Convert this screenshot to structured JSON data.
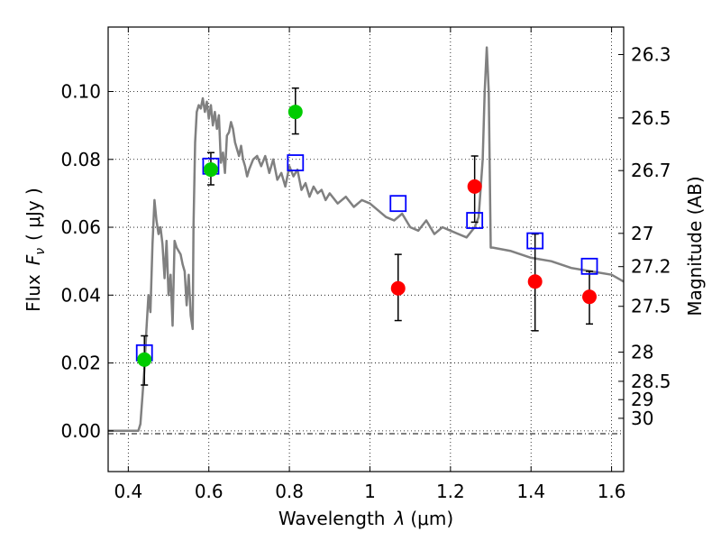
{
  "chart_data": {
    "type": "scatter",
    "xlabel_text": "Wavelength",
    "xlabel_symbol": "λ",
    "xlabel_unit": "(μm)",
    "ylabel_text": "Flux",
    "ylabel_symbol": "F",
    "ylabel_subscript": "ν",
    "ylabel_unit": "( μJy )",
    "y2label": "Magnitude (AB)",
    "xlim": [
      0.35,
      1.63
    ],
    "ylim": [
      -0.012,
      0.119
    ],
    "grid": true,
    "x_ticks": [
      {
        "value": 0.4,
        "label": "0.4"
      },
      {
        "value": 0.6,
        "label": "0.6"
      },
      {
        "value": 0.8,
        "label": "0.8"
      },
      {
        "value": 1.0,
        "label": "1"
      },
      {
        "value": 1.2,
        "label": "1.2"
      },
      {
        "value": 1.4,
        "label": "1.4"
      },
      {
        "value": 1.6,
        "label": "1.6"
      }
    ],
    "y_ticks": [
      {
        "value": 0.0,
        "label": "0.00"
      },
      {
        "value": 0.02,
        "label": "0.02"
      },
      {
        "value": 0.04,
        "label": "0.04"
      },
      {
        "value": 0.06,
        "label": "0.06"
      },
      {
        "value": 0.08,
        "label": "0.08"
      },
      {
        "value": 0.1,
        "label": "0.10"
      }
    ],
    "y2_ticks": [
      {
        "label": "26.3",
        "flux": 0.1109
      },
      {
        "label": "26.5",
        "flux": 0.0922
      },
      {
        "label": "26.7",
        "flux": 0.0767
      },
      {
        "label": "27",
        "flux": 0.0582
      },
      {
        "label": "27.2",
        "flux": 0.0484
      },
      {
        "label": "27.5",
        "flux": 0.0367
      },
      {
        "label": "28",
        "flux": 0.0232
      },
      {
        "label": "28.5",
        "flux": 0.0146
      },
      {
        "label": "29",
        "flux": 0.0092
      },
      {
        "label": "30",
        "flux": 0.0037
      }
    ],
    "model_spectrum": {
      "color": "#808080",
      "x": [
        0.35,
        0.42,
        0.425,
        0.43,
        0.435,
        0.44,
        0.445,
        0.45,
        0.455,
        0.46,
        0.465,
        0.47,
        0.475,
        0.48,
        0.485,
        0.49,
        0.495,
        0.5,
        0.505,
        0.51,
        0.515,
        0.52,
        0.525,
        0.53,
        0.535,
        0.54,
        0.545,
        0.55,
        0.555,
        0.56,
        0.562,
        0.566,
        0.57,
        0.575,
        0.58,
        0.585,
        0.59,
        0.595,
        0.6,
        0.605,
        0.61,
        0.615,
        0.62,
        0.625,
        0.63,
        0.635,
        0.64,
        0.645,
        0.65,
        0.655,
        0.66,
        0.665,
        0.67,
        0.675,
        0.68,
        0.685,
        0.69,
        0.695,
        0.7,
        0.71,
        0.72,
        0.73,
        0.74,
        0.75,
        0.76,
        0.77,
        0.78,
        0.79,
        0.8,
        0.81,
        0.82,
        0.83,
        0.84,
        0.85,
        0.86,
        0.87,
        0.88,
        0.89,
        0.9,
        0.92,
        0.94,
        0.96,
        0.98,
        1.0,
        1.02,
        1.04,
        1.06,
        1.08,
        1.1,
        1.12,
        1.14,
        1.16,
        1.18,
        1.2,
        1.22,
        1.24,
        1.26,
        1.27,
        1.28,
        1.285,
        1.29,
        1.295,
        1.3,
        1.305,
        1.35,
        1.4,
        1.45,
        1.5,
        1.55,
        1.6,
        1.63
      ],
      "y": [
        0.0,
        0.0,
        0.0,
        0.002,
        0.01,
        0.018,
        0.03,
        0.04,
        0.035,
        0.055,
        0.068,
        0.062,
        0.058,
        0.06,
        0.055,
        0.045,
        0.056,
        0.04,
        0.046,
        0.031,
        0.056,
        0.054,
        0.053,
        0.052,
        0.049,
        0.047,
        0.037,
        0.046,
        0.034,
        0.03,
        0.06,
        0.085,
        0.094,
        0.096,
        0.095,
        0.098,
        0.094,
        0.097,
        0.092,
        0.096,
        0.09,
        0.094,
        0.089,
        0.093,
        0.079,
        0.082,
        0.076,
        0.087,
        0.088,
        0.091,
        0.089,
        0.085,
        0.083,
        0.081,
        0.084,
        0.08,
        0.078,
        0.075,
        0.077,
        0.08,
        0.081,
        0.078,
        0.081,
        0.076,
        0.08,
        0.074,
        0.076,
        0.072,
        0.078,
        0.075,
        0.077,
        0.071,
        0.073,
        0.069,
        0.072,
        0.07,
        0.071,
        0.068,
        0.07,
        0.067,
        0.069,
        0.066,
        0.068,
        0.067,
        0.065,
        0.063,
        0.062,
        0.064,
        0.06,
        0.059,
        0.062,
        0.058,
        0.06,
        0.059,
        0.058,
        0.057,
        0.06,
        0.063,
        0.08,
        0.1,
        0.113,
        0.1,
        0.054,
        0.054,
        0.053,
        0.051,
        0.05,
        0.048,
        0.047,
        0.046,
        0.044
      ]
    },
    "series": [
      {
        "marker": "open-square",
        "color": "#0000ff",
        "points": [
          {
            "x": 0.44,
            "y": 0.023
          },
          {
            "x": 0.605,
            "y": 0.078
          },
          {
            "x": 0.815,
            "y": 0.079
          },
          {
            "x": 1.07,
            "y": 0.067
          },
          {
            "x": 1.26,
            "y": 0.062
          },
          {
            "x": 1.41,
            "y": 0.056
          },
          {
            "x": 1.545,
            "y": 0.0485
          }
        ]
      },
      {
        "marker": "filled-circle",
        "color": "#00cc00",
        "points": [
          {
            "x": 0.44,
            "y": 0.021,
            "err_low": 0.0135,
            "err_high": 0.028
          },
          {
            "x": 0.605,
            "y": 0.077,
            "err_low": 0.0725,
            "err_high": 0.082
          },
          {
            "x": 0.815,
            "y": 0.094,
            "err_low": 0.0875,
            "err_high": 0.101
          }
        ]
      },
      {
        "marker": "filled-circle",
        "color": "#ff0000",
        "points": [
          {
            "x": 1.07,
            "y": 0.042,
            "err_low": 0.0325,
            "err_high": 0.052
          },
          {
            "x": 1.26,
            "y": 0.072,
            "err_low": 0.0615,
            "err_high": 0.081
          },
          {
            "x": 1.41,
            "y": 0.044,
            "err_low": 0.0295,
            "err_high": 0.058
          },
          {
            "x": 1.545,
            "y": 0.0395,
            "err_low": 0.0315,
            "err_high": 0.047
          }
        ]
      }
    ]
  }
}
